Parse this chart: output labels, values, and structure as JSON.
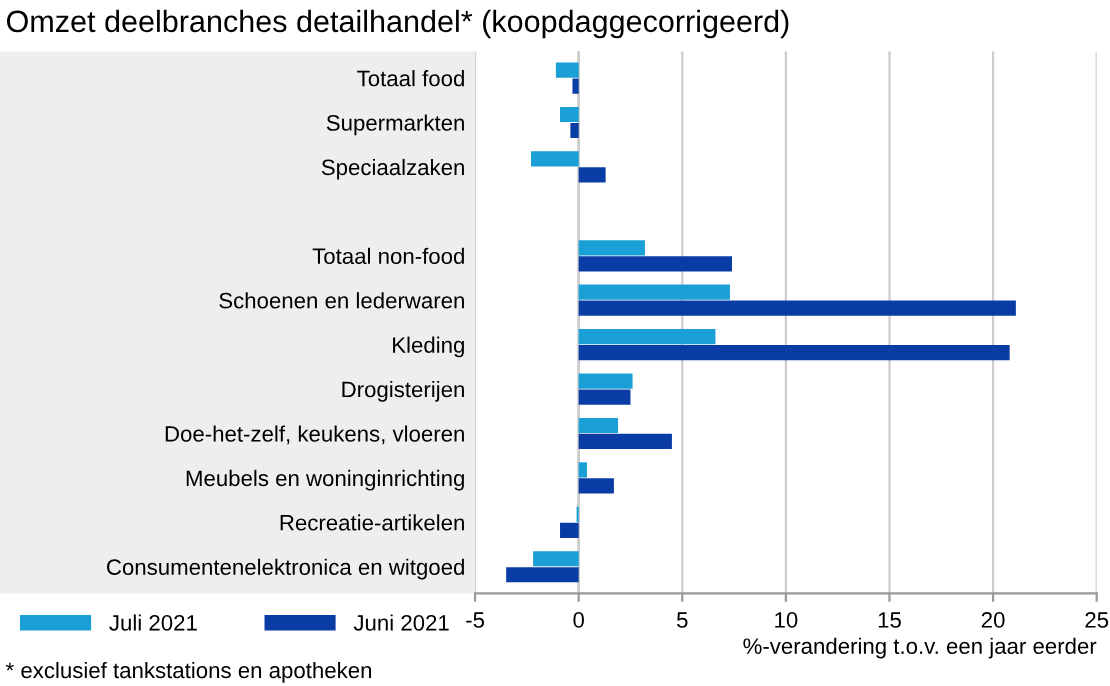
{
  "chart_data": {
    "type": "bar",
    "orientation": "horizontal",
    "title": "Omzet deelbranches detailhandel* (koopdaggecorrigeerd)",
    "xlabel": "%-verandering t.o.v. een jaar eerder",
    "categories": [
      "Totaal food",
      "Supermarkten",
      "Speciaalzaken",
      null,
      "Totaal non-food",
      "Schoenen en lederwaren",
      "Kleding",
      "Drogisterijen",
      "Doe-het-zelf, keukens, vloeren",
      "Meubels en woninginrichting",
      "Recreatie-artikelen",
      "Consumentenelektronica en witgoed"
    ],
    "series": [
      {
        "name": "Juli 2021",
        "color": "#1a9fd6",
        "values": [
          -1.1,
          -0.9,
          -2.3,
          null,
          3.2,
          7.3,
          6.6,
          2.6,
          1.9,
          0.4,
          -0.1,
          -2.2
        ]
      },
      {
        "name": "Juni 2021",
        "color": "#0a3ca6",
        "values": [
          -0.3,
          -0.4,
          1.3,
          null,
          7.4,
          21.1,
          20.8,
          2.5,
          4.5,
          1.7,
          -0.9,
          -3.5
        ]
      }
    ],
    "xlim": [
      -5,
      25
    ],
    "xticks": [
      -5,
      0,
      5,
      10,
      15,
      20,
      25
    ],
    "grid": "x",
    "legend": "bottom left",
    "annotations": [
      "* exclusief tankstations en apotheken"
    ]
  }
}
